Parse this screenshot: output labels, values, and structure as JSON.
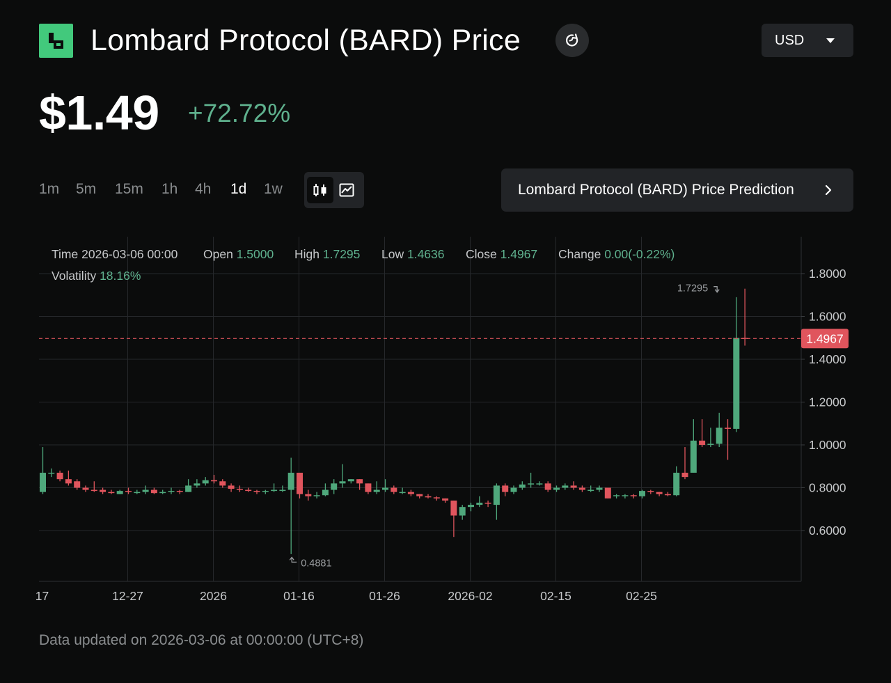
{
  "header": {
    "title": "Lombard Protocol (BARD) Price",
    "currency": "USD",
    "price": "$1.49",
    "change": "+72.72%"
  },
  "intervals": [
    {
      "label": "1m",
      "active": false
    },
    {
      "label": "5m",
      "active": false
    },
    {
      "label": "15m",
      "active": false
    },
    {
      "label": "1h",
      "active": false
    },
    {
      "label": "4h",
      "active": false
    },
    {
      "label": "1d",
      "active": true
    },
    {
      "label": "1w",
      "active": false
    }
  ],
  "prediction_button": "Lombard Protocol (BARD) Price Prediction",
  "info": {
    "time_label": "Time",
    "time_value": "2026-03-06 00:00",
    "open_label": "Open",
    "open_value": "1.5000",
    "high_label": "High",
    "high_value": "1.7295",
    "low_label": "Low",
    "low_value": "1.4636",
    "close_label": "Close",
    "close_value": "1.4967",
    "change_label": "Change",
    "change_value": "0.00(-0.22%)",
    "volatility_label": "Volatility",
    "volatility_value": "18.16%"
  },
  "chart_data": {
    "type": "candlestick",
    "x_start": "2025-12-17",
    "x_tick_labels": [
      {
        "label": "17",
        "date": "2025-12-17"
      },
      {
        "label": "12-27",
        "date": "2025-12-27"
      },
      {
        "label": "2026",
        "date": "2026-01-06"
      },
      {
        "label": "01-16",
        "date": "2026-01-16"
      },
      {
        "label": "01-26",
        "date": "2026-01-26"
      },
      {
        "label": "2026-02",
        "date": "2026-02-05"
      },
      {
        "label": "02-15",
        "date": "2026-02-15"
      },
      {
        "label": "02-25",
        "date": "2026-02-25"
      }
    ],
    "y_ticks": [
      "0.6000",
      "0.8000",
      "1.0000",
      "1.2000",
      "1.4000",
      "1.6000",
      "1.8000"
    ],
    "ylim": [
      0.4,
      2.0
    ],
    "last_price": 1.4967,
    "last_price_label": "1.4967",
    "max_annotation": {
      "label": "1.7295",
      "date": "2026-03-06",
      "value": 1.7295
    },
    "min_annotation": {
      "label": "0.4881",
      "date": "2026-01-15",
      "value": 0.4881
    },
    "colors": {
      "up": "#4fa87c",
      "down": "#e0555d"
    },
    "candles": [
      [
        0.78,
        0.87,
        0.99,
        0.77
      ],
      [
        0.87,
        0.87,
        0.89,
        0.85
      ],
      [
        0.87,
        0.84,
        0.88,
        0.83
      ],
      [
        0.84,
        0.82,
        0.88,
        0.81
      ],
      [
        0.83,
        0.8,
        0.84,
        0.79
      ],
      [
        0.8,
        0.79,
        0.81,
        0.78
      ],
      [
        0.79,
        0.785,
        0.83,
        0.78
      ],
      [
        0.79,
        0.78,
        0.8,
        0.77
      ],
      [
        0.78,
        0.775,
        0.79,
        0.77
      ],
      [
        0.77,
        0.785,
        0.79,
        0.77
      ],
      [
        0.785,
        0.78,
        0.8,
        0.77
      ],
      [
        0.78,
        0.78,
        0.79,
        0.77
      ],
      [
        0.78,
        0.79,
        0.81,
        0.77
      ],
      [
        0.79,
        0.775,
        0.8,
        0.77
      ],
      [
        0.775,
        0.78,
        0.79,
        0.77
      ],
      [
        0.78,
        0.785,
        0.8,
        0.77
      ],
      [
        0.785,
        0.78,
        0.79,
        0.77
      ],
      [
        0.78,
        0.81,
        0.84,
        0.78
      ],
      [
        0.81,
        0.82,
        0.84,
        0.8
      ],
      [
        0.82,
        0.835,
        0.85,
        0.81
      ],
      [
        0.835,
        0.83,
        0.86,
        0.82
      ],
      [
        0.83,
        0.81,
        0.84,
        0.8
      ],
      [
        0.81,
        0.795,
        0.82,
        0.78
      ],
      [
        0.795,
        0.79,
        0.81,
        0.78
      ],
      [
        0.79,
        0.785,
        0.8,
        0.78
      ],
      [
        0.785,
        0.78,
        0.79,
        0.77
      ],
      [
        0.78,
        0.785,
        0.79,
        0.77
      ],
      [
        0.785,
        0.79,
        0.82,
        0.78
      ],
      [
        0.79,
        0.79,
        0.81,
        0.78
      ],
      [
        0.79,
        0.87,
        0.94,
        0.49
      ],
      [
        0.87,
        0.77,
        0.87,
        0.75
      ],
      [
        0.77,
        0.76,
        0.79,
        0.74
      ],
      [
        0.76,
        0.765,
        0.78,
        0.75
      ],
      [
        0.765,
        0.79,
        0.82,
        0.76
      ],
      [
        0.79,
        0.82,
        0.84,
        0.77
      ],
      [
        0.82,
        0.83,
        0.91,
        0.8
      ],
      [
        0.83,
        0.84,
        0.84,
        0.82
      ],
      [
        0.84,
        0.82,
        0.84,
        0.79
      ],
      [
        0.82,
        0.78,
        0.82,
        0.77
      ],
      [
        0.78,
        0.79,
        0.83,
        0.77
      ],
      [
        0.79,
        0.8,
        0.84,
        0.78
      ],
      [
        0.8,
        0.78,
        0.81,
        0.77
      ],
      [
        0.78,
        0.78,
        0.8,
        0.77
      ],
      [
        0.78,
        0.77,
        0.79,
        0.76
      ],
      [
        0.77,
        0.76,
        0.77,
        0.75
      ],
      [
        0.76,
        0.755,
        0.77,
        0.75
      ],
      [
        0.755,
        0.75,
        0.76,
        0.74
      ],
      [
        0.75,
        0.74,
        0.75,
        0.73
      ],
      [
        0.74,
        0.67,
        0.74,
        0.57
      ],
      [
        0.67,
        0.71,
        0.72,
        0.65
      ],
      [
        0.71,
        0.72,
        0.73,
        0.69
      ],
      [
        0.72,
        0.73,
        0.76,
        0.71
      ],
      [
        0.73,
        0.725,
        0.74,
        0.71
      ],
      [
        0.72,
        0.81,
        0.82,
        0.65
      ],
      [
        0.81,
        0.78,
        0.82,
        0.76
      ],
      [
        0.78,
        0.8,
        0.81,
        0.77
      ],
      [
        0.8,
        0.815,
        0.83,
        0.79
      ],
      [
        0.815,
        0.82,
        0.87,
        0.8
      ],
      [
        0.82,
        0.82,
        0.83,
        0.81
      ],
      [
        0.82,
        0.79,
        0.83,
        0.78
      ],
      [
        0.79,
        0.8,
        0.81,
        0.78
      ],
      [
        0.8,
        0.81,
        0.82,
        0.79
      ],
      [
        0.81,
        0.8,
        0.83,
        0.79
      ],
      [
        0.8,
        0.79,
        0.81,
        0.78
      ],
      [
        0.79,
        0.79,
        0.81,
        0.78
      ],
      [
        0.79,
        0.8,
        0.81,
        0.78
      ],
      [
        0.8,
        0.75,
        0.8,
        0.75
      ],
      [
        0.76,
        0.765,
        0.77,
        0.75
      ],
      [
        0.765,
        0.765,
        0.77,
        0.75
      ],
      [
        0.765,
        0.76,
        0.77,
        0.75
      ],
      [
        0.76,
        0.785,
        0.79,
        0.75
      ],
      [
        0.785,
        0.78,
        0.79,
        0.77
      ],
      [
        0.78,
        0.77,
        0.78,
        0.76
      ],
      [
        0.77,
        0.765,
        0.78,
        0.76
      ],
      [
        0.765,
        0.87,
        0.9,
        0.76
      ],
      [
        0.87,
        0.85,
        0.99,
        0.84
      ],
      [
        0.87,
        1.02,
        1.12,
        0.87
      ],
      [
        1.02,
        1.0,
        1.12,
        0.99
      ],
      [
        1.0,
        1.005,
        1.08,
        0.99
      ],
      [
        1.005,
        1.08,
        1.15,
        0.99
      ],
      [
        1.08,
        1.075,
        1.12,
        0.93
      ],
      [
        1.075,
        1.5,
        1.69,
        1.06
      ],
      [
        1.5,
        1.4967,
        1.7295,
        1.4636
      ]
    ]
  },
  "footer": "Data updated on 2026-03-06 at 00:00:00 (UTC+8)"
}
